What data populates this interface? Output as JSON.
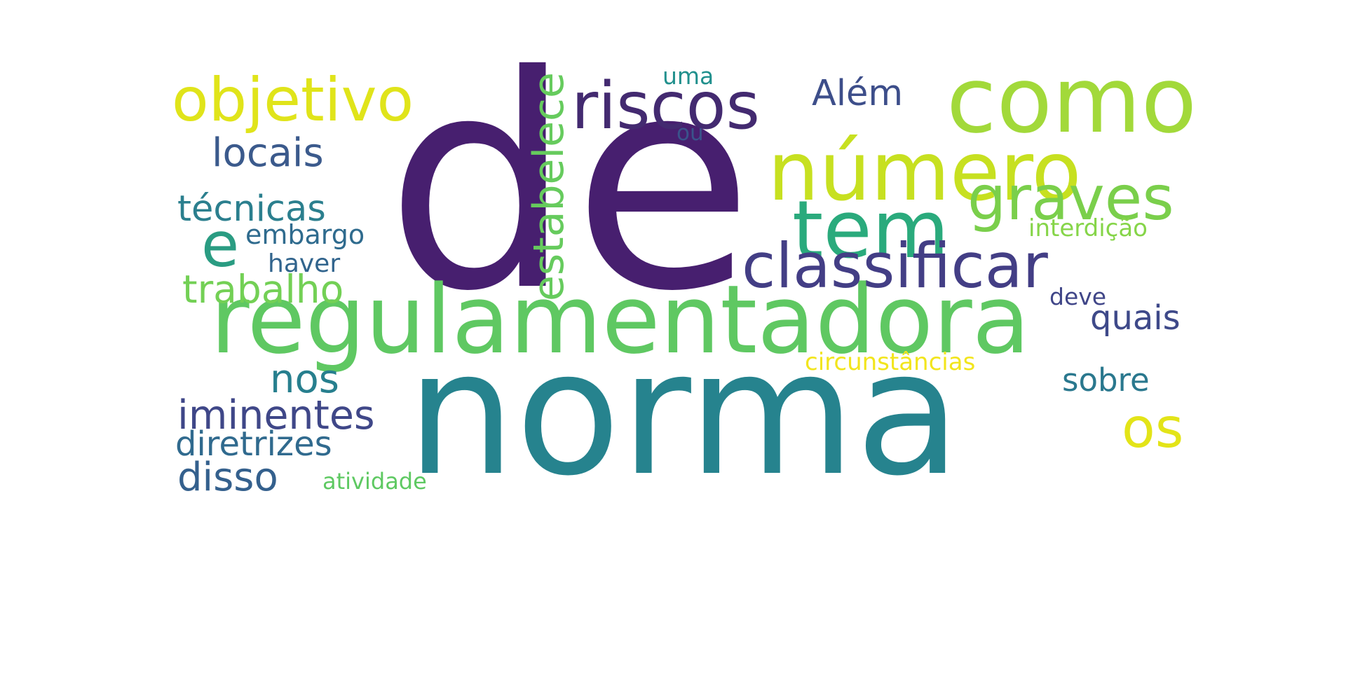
{
  "word_cloud": {
    "words": [
      {
        "text": "de",
        "color": "#471f6f"
      },
      {
        "text": "norma",
        "color": "#26838e"
      },
      {
        "text": "regulamentadora",
        "color": "#5fc862"
      },
      {
        "text": "como",
        "color": "#a2d93a"
      },
      {
        "text": "número",
        "color": "#c7e020"
      },
      {
        "text": "objetivo",
        "color": "#e0e41a"
      },
      {
        "text": "riscos",
        "color": "#432a70"
      },
      {
        "text": "tem",
        "color": "#2aaa7c"
      },
      {
        "text": "graves",
        "color": "#7acf4b"
      },
      {
        "text": "classificar",
        "color": "#433e85"
      },
      {
        "text": "e",
        "color": "#2a9c82"
      },
      {
        "text": "estabelece",
        "color": "#66cb5d"
      },
      {
        "text": "Além",
        "color": "#3d4e8a"
      },
      {
        "text": "locais",
        "color": "#3b5a8c"
      },
      {
        "text": "técnicas",
        "color": "#2b7f8e"
      },
      {
        "text": "trabalho",
        "color": "#73d055"
      },
      {
        "text": "embargo",
        "color": "#2f6b8e"
      },
      {
        "text": "haver",
        "color": "#31648d"
      },
      {
        "text": "interdição",
        "color": "#86d549"
      },
      {
        "text": "deve",
        "color": "#404688"
      },
      {
        "text": "quais",
        "color": "#3e4989"
      },
      {
        "text": "nos",
        "color": "#277f8e"
      },
      {
        "text": "sobre",
        "color": "#2a788e"
      },
      {
        "text": "iminentes",
        "color": "#3f4788"
      },
      {
        "text": "circunstâncias",
        "color": "#f2e51d"
      },
      {
        "text": "diretrizes",
        "color": "#306a8e"
      },
      {
        "text": "os",
        "color": "#e3e418"
      },
      {
        "text": "disso",
        "color": "#34608d"
      },
      {
        "text": "atividade",
        "color": "#5ec962"
      },
      {
        "text": "uma",
        "color": "#21908d"
      },
      {
        "text": "ou",
        "color": "#3a538b"
      }
    ]
  }
}
